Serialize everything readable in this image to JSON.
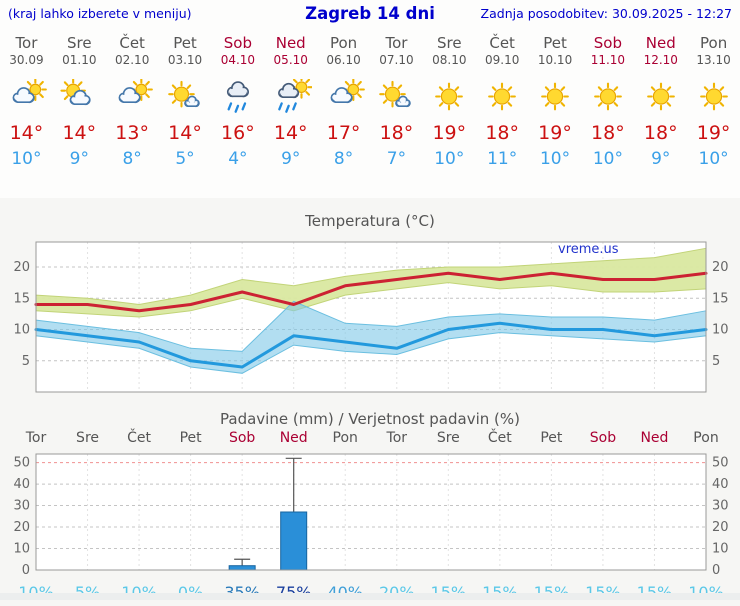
{
  "header": {
    "left": "(kraj lahko izberete v meniju)",
    "title": "Zagreb 14 dni",
    "right": "Zadnja posodobitev: 30.09.2025 - 12:27"
  },
  "watermark": "vreme.us",
  "colors": {
    "header_text": "#0000cc",
    "weekday_label": "#555555",
    "weekend_label": "#aa0033",
    "high_temp": "#cc1111",
    "low_temp": "#3aa0e8",
    "max_line": "#cc2233",
    "min_line": "#2299dd",
    "max_band": "#d9e8a0",
    "min_band": "#7ec8e8",
    "bar_fill": "#2a8fd8"
  },
  "days": [
    {
      "name": "Tor",
      "date": "30.09",
      "weekend": false,
      "icon": "mostly-cloudy",
      "high": "14°",
      "low": "10°",
      "prob": "10%",
      "prob_color": "#5bc8e8"
    },
    {
      "name": "Sre",
      "date": "01.10",
      "weekend": false,
      "icon": "partly-cloudy",
      "high": "14°",
      "low": "9°",
      "prob": "5%",
      "prob_color": "#5bc8e8"
    },
    {
      "name": "Čet",
      "date": "02.10",
      "weekend": false,
      "icon": "mostly-cloudy",
      "high": "13°",
      "low": "8°",
      "prob": "10%",
      "prob_color": "#5bc8e8"
    },
    {
      "name": "Pet",
      "date": "03.10",
      "weekend": false,
      "icon": "mostly-sunny",
      "high": "14°",
      "low": "5°",
      "prob": "0%",
      "prob_color": "#5bc8e8"
    },
    {
      "name": "Sob",
      "date": "04.10",
      "weekend": true,
      "icon": "rain",
      "high": "16°",
      "low": "4°",
      "prob": "35%",
      "prob_color": "#2b7bba"
    },
    {
      "name": "Ned",
      "date": "05.10",
      "weekend": true,
      "icon": "sun-shower",
      "high": "14°",
      "low": "9°",
      "prob": "75%",
      "prob_color": "#1a3f9e"
    },
    {
      "name": "Pon",
      "date": "06.10",
      "weekend": false,
      "icon": "mostly-cloudy",
      "high": "17°",
      "low": "8°",
      "prob": "40%",
      "prob_color": "#3f9fd8"
    },
    {
      "name": "Tor",
      "date": "07.10",
      "weekend": false,
      "icon": "mostly-sunny",
      "high": "18°",
      "low": "7°",
      "prob": "20%",
      "prob_color": "#5bc8e8"
    },
    {
      "name": "Sre",
      "date": "08.10",
      "weekend": false,
      "icon": "sunny",
      "high": "19°",
      "low": "10°",
      "prob": "15%",
      "prob_color": "#5bc8e8"
    },
    {
      "name": "Čet",
      "date": "09.10",
      "weekend": false,
      "icon": "sunny",
      "high": "18°",
      "low": "11°",
      "prob": "15%",
      "prob_color": "#5bc8e8"
    },
    {
      "name": "Pet",
      "date": "10.10",
      "weekend": false,
      "icon": "sunny",
      "high": "19°",
      "low": "10°",
      "prob": "15%",
      "prob_color": "#5bc8e8"
    },
    {
      "name": "Sob",
      "date": "11.10",
      "weekend": true,
      "icon": "sunny",
      "high": "18°",
      "low": "10°",
      "prob": "15%",
      "prob_color": "#5bc8e8"
    },
    {
      "name": "Ned",
      "date": "12.10",
      "weekend": true,
      "icon": "sunny",
      "high": "18°",
      "low": "9°",
      "prob": "15%",
      "prob_color": "#5bc8e8"
    },
    {
      "name": "Pon",
      "date": "13.10",
      "weekend": false,
      "icon": "sunny",
      "high": "19°",
      "low": "10°",
      "prob": "10%",
      "prob_color": "#5bc8e8"
    }
  ],
  "chart_data": [
    {
      "type": "line",
      "title": "Temperatura (°C)",
      "categories": [
        "Tor 30.09",
        "Sre 01.10",
        "Čet 02.10",
        "Pet 03.10",
        "Sob 04.10",
        "Ned 05.10",
        "Pon 06.10",
        "Tor 07.10",
        "Sre 08.10",
        "Čet 09.10",
        "Pet 10.10",
        "Sob 11.10",
        "Ned 12.10",
        "Pon 13.10"
      ],
      "series": [
        {
          "name": "max",
          "color": "#cc2233",
          "values": [
            14,
            14,
            13,
            14,
            16,
            14,
            17,
            18,
            19,
            18,
            19,
            18,
            18,
            19
          ]
        },
        {
          "name": "min",
          "color": "#2299dd",
          "values": [
            10,
            9,
            8,
            5,
            4,
            9,
            8,
            7,
            10,
            11,
            10,
            10,
            9,
            10
          ]
        },
        {
          "name": "max_range_upper",
          "color": "#d9e8a0",
          "values": [
            15.5,
            15,
            14,
            15.5,
            18,
            17,
            18.5,
            19.5,
            20,
            20,
            20.5,
            21,
            21.5,
            23
          ]
        },
        {
          "name": "max_range_lower",
          "color": "#d9e8a0",
          "values": [
            13,
            12.5,
            12,
            13,
            15,
            13,
            15.5,
            16.5,
            17.5,
            16.5,
            17,
            16,
            16,
            16.5
          ]
        },
        {
          "name": "min_range_upper",
          "color": "#7ec8e8",
          "values": [
            11.5,
            10.5,
            9.5,
            7,
            6.5,
            14.5,
            11,
            10.5,
            12,
            12.5,
            12,
            12,
            11.5,
            13
          ]
        },
        {
          "name": "min_range_lower",
          "color": "#7ec8e8",
          "values": [
            9,
            8,
            7,
            4,
            3,
            7.5,
            6.5,
            6,
            8.5,
            9.5,
            9,
            8.5,
            8,
            9
          ]
        }
      ],
      "ylim": [
        0,
        24
      ],
      "yticks": [
        5,
        10,
        15,
        20
      ],
      "grid": true,
      "legend": "none"
    },
    {
      "type": "bar",
      "title": "Padavine (mm) / Verjetnost padavin (%)",
      "categories": [
        "Tor",
        "Sre",
        "Čet",
        "Pet",
        "Sob",
        "Ned",
        "Pon",
        "Tor",
        "Sre",
        "Čet",
        "Pet",
        "Sob",
        "Ned",
        "Pon"
      ],
      "values": [
        0,
        0,
        0,
        0,
        2,
        27,
        0,
        0,
        0,
        0,
        0,
        0,
        0,
        0
      ],
      "whisker_max": [
        0,
        0,
        0,
        0,
        5,
        52,
        0,
        0,
        0,
        0,
        0,
        0,
        0,
        0
      ],
      "probabilities_pct": [
        10,
        5,
        10,
        0,
        35,
        75,
        40,
        20,
        15,
        15,
        15,
        15,
        15,
        10
      ],
      "ylim": [
        0,
        54
      ],
      "yticks": [
        0,
        10,
        20,
        30,
        40,
        50
      ],
      "bar_color": "#2a8fd8",
      "grid": true,
      "legend": "none"
    }
  ]
}
